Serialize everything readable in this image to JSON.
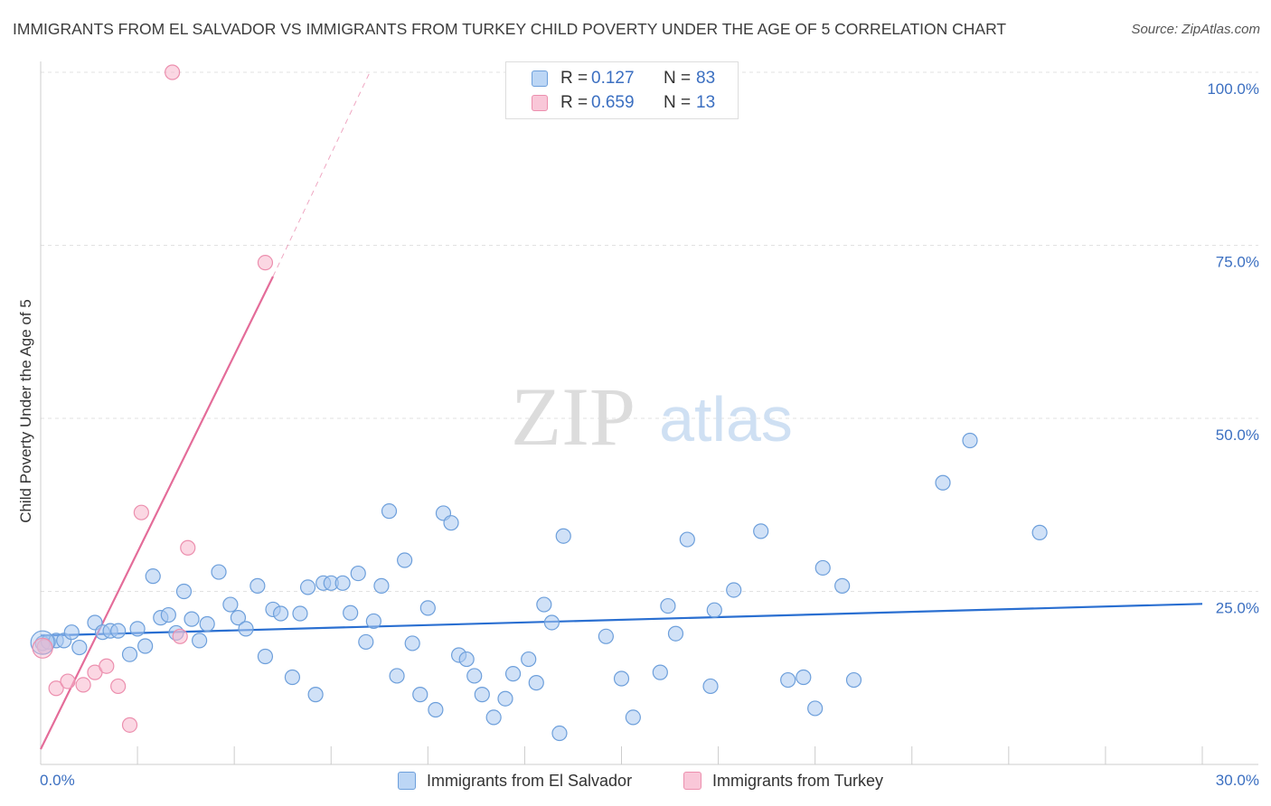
{
  "header": {
    "title": "IMMIGRANTS FROM EL SALVADOR VS IMMIGRANTS FROM TURKEY CHILD POVERTY UNDER THE AGE OF 5 CORRELATION CHART",
    "source": "Source: ZipAtlas.com"
  },
  "watermark": {
    "zip": "ZIP",
    "atlas": "atlas"
  },
  "legend": {
    "items": [
      {
        "r_label": "R =",
        "r_value": "0.127",
        "n_label": "N =",
        "n_value": "83"
      },
      {
        "r_label": "R =",
        "r_value": "0.659",
        "n_label": "N =",
        "n_value": "13"
      }
    ]
  },
  "chart_data": {
    "type": "scatter",
    "title": "IMMIGRANTS FROM EL SALVADOR VS IMMIGRANTS FROM TURKEY CHILD POVERTY UNDER THE AGE OF 5 CORRELATION CHART",
    "xlabel": "",
    "ylabel": "Child Poverty Under the Age of 5",
    "xlim": [
      0,
      30
    ],
    "ylim": [
      0,
      100
    ],
    "x_tick_labels": [
      "0.0%",
      "30.0%"
    ],
    "y_tick_labels": [
      "100.0%",
      "75.0%",
      "50.0%",
      "25.0%"
    ],
    "y_ticks": [
      100,
      75,
      50,
      25
    ],
    "grid": true,
    "legend_position": "bottom",
    "series": [
      {
        "name": "Immigrants from El Salvador",
        "color": "#a9c8f0",
        "edge_color": "#6d9fdb",
        "line_color": "#2a6fd1",
        "trend": [
          [
            0,
            18.6
          ],
          [
            30,
            23.2
          ]
        ],
        "points": [
          [
            0.05,
            17.5
          ],
          [
            0.2,
            17.7
          ],
          [
            0.4,
            17.9
          ],
          [
            0.6,
            17.9
          ],
          [
            0.8,
            19.1
          ],
          [
            1.0,
            16.9
          ],
          [
            1.4,
            20.5
          ],
          [
            1.6,
            19.1
          ],
          [
            1.8,
            19.3
          ],
          [
            2.0,
            19.3
          ],
          [
            2.3,
            15.9
          ],
          [
            2.5,
            19.6
          ],
          [
            2.7,
            17.1
          ],
          [
            2.9,
            27.2
          ],
          [
            3.1,
            21.2
          ],
          [
            3.3,
            21.6
          ],
          [
            3.5,
            19.0
          ],
          [
            3.7,
            25.0
          ],
          [
            3.9,
            21.0
          ],
          [
            4.1,
            17.9
          ],
          [
            4.3,
            20.3
          ],
          [
            4.6,
            27.8
          ],
          [
            4.9,
            23.1
          ],
          [
            5.1,
            21.2
          ],
          [
            5.3,
            19.6
          ],
          [
            5.6,
            25.8
          ],
          [
            5.8,
            15.6
          ],
          [
            6.0,
            22.4
          ],
          [
            6.2,
            21.8
          ],
          [
            6.5,
            12.6
          ],
          [
            6.7,
            21.8
          ],
          [
            6.9,
            25.6
          ],
          [
            7.1,
            10.1
          ],
          [
            7.3,
            26.2
          ],
          [
            7.5,
            26.2
          ],
          [
            7.8,
            26.2
          ],
          [
            8.0,
            21.9
          ],
          [
            8.2,
            27.6
          ],
          [
            8.4,
            17.7
          ],
          [
            8.6,
            20.7
          ],
          [
            8.8,
            25.8
          ],
          [
            9.0,
            36.6
          ],
          [
            9.2,
            12.8
          ],
          [
            9.4,
            29.5
          ],
          [
            9.6,
            17.5
          ],
          [
            9.8,
            10.1
          ],
          [
            10.0,
            22.6
          ],
          [
            10.2,
            7.9
          ],
          [
            10.4,
            36.3
          ],
          [
            10.6,
            34.9
          ],
          [
            10.8,
            15.8
          ],
          [
            11.0,
            15.2
          ],
          [
            11.2,
            12.8
          ],
          [
            11.4,
            10.1
          ],
          [
            11.7,
            6.8
          ],
          [
            12.0,
            9.5
          ],
          [
            12.2,
            13.1
          ],
          [
            12.6,
            15.2
          ],
          [
            12.8,
            11.8
          ],
          [
            13.0,
            23.1
          ],
          [
            13.2,
            20.5
          ],
          [
            13.4,
            4.5
          ],
          [
            13.5,
            33.0
          ],
          [
            14.6,
            18.5
          ],
          [
            15.0,
            12.4
          ],
          [
            15.3,
            6.8
          ],
          [
            16.0,
            13.3
          ],
          [
            16.2,
            22.9
          ],
          [
            16.4,
            18.9
          ],
          [
            16.7,
            32.5
          ],
          [
            17.3,
            11.3
          ],
          [
            17.4,
            22.3
          ],
          [
            17.9,
            25.2
          ],
          [
            18.6,
            33.7
          ],
          [
            19.3,
            12.2
          ],
          [
            19.7,
            12.6
          ],
          [
            20.0,
            8.1
          ],
          [
            20.2,
            28.4
          ],
          [
            20.7,
            25.8
          ],
          [
            21.0,
            12.2
          ],
          [
            23.3,
            40.7
          ],
          [
            24.0,
            46.8
          ],
          [
            25.8,
            33.5
          ]
        ]
      },
      {
        "name": "Immigrants from Turkey",
        "color": "#f7b7cc",
        "edge_color": "#ec8fae",
        "line_color": "#e46c99",
        "trend": [
          [
            0,
            2.2
          ],
          [
            6.0,
            70.5
          ]
        ],
        "trend_dashed": [
          [
            6.0,
            70.5
          ],
          [
            8.5,
            100
          ]
        ],
        "points": [
          [
            0.1,
            17.0
          ],
          [
            0.4,
            11.0
          ],
          [
            0.7,
            12.0
          ],
          [
            1.1,
            11.5
          ],
          [
            1.4,
            13.3
          ],
          [
            1.7,
            14.2
          ],
          [
            2.0,
            11.3
          ],
          [
            2.3,
            5.7
          ],
          [
            2.6,
            36.4
          ],
          [
            3.6,
            18.5
          ],
          [
            3.8,
            31.3
          ],
          [
            3.4,
            100.0
          ],
          [
            5.8,
            72.5
          ]
        ]
      }
    ]
  }
}
